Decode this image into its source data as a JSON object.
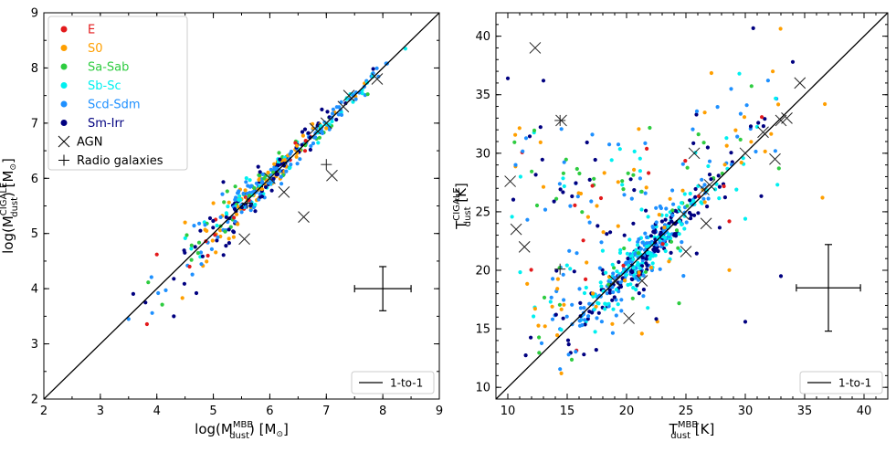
{
  "chart_data": [
    {
      "type": "scatter",
      "panel": "left",
      "xlabel_main": "log(M",
      "xlabel_sup": "MBB",
      "xlabel_sub": "dust",
      "xlabel_end": ") [M",
      "xlabel_close": "]",
      "ylabel_main": "log(M",
      "ylabel_sup": "CIGALE",
      "ylabel_sub": "dust",
      "ylabel_end": ") [M",
      "ylabel_close": "]",
      "xlim": [
        2,
        9
      ],
      "ylim": [
        2,
        9
      ],
      "xticks": [
        "2",
        "3",
        "4",
        "5",
        "6",
        "7",
        "8",
        "9"
      ],
      "yticks": [
        "2",
        "3",
        "4",
        "5",
        "6",
        "7",
        "8",
        "9"
      ],
      "one_to_one_label": "1-to-1",
      "error_bar": {
        "x": 8.0,
        "y": 4.0,
        "xerr": 0.5,
        "yerr": 0.4
      },
      "legend": [
        {
          "label": "E",
          "color": "#e31a1c",
          "marker": "dot"
        },
        {
          "label": "S0",
          "color": "#ff9f00",
          "marker": "dot"
        },
        {
          "label": "Sa-Sab",
          "color": "#2ecc40",
          "marker": "dot"
        },
        {
          "label": "Sb-Sc",
          "color": "#00f0f0",
          "marker": "dot"
        },
        {
          "label": "Scd-Sdm",
          "color": "#1e90ff",
          "marker": "dot"
        },
        {
          "label": "Sm-Irr",
          "color": "#000080",
          "marker": "dot"
        },
        {
          "label": "AGN",
          "color": "#000000",
          "marker": "x"
        },
        {
          "label": "Radio galaxies",
          "color": "#000000",
          "marker": "plus"
        }
      ],
      "agn_points": [
        [
          5.55,
          4.9
        ],
        [
          6.6,
          5.3
        ],
        [
          6.25,
          5.75
        ],
        [
          7.1,
          6.05
        ],
        [
          6.8,
          6.9
        ],
        [
          7.0,
          7.0
        ],
        [
          7.3,
          7.3
        ],
        [
          7.4,
          7.5
        ],
        [
          7.9,
          7.8
        ],
        [
          6.0,
          6.0
        ]
      ],
      "radio_points": [
        [
          7.0,
          6.25
        ],
        [
          5.6,
          5.55
        ]
      ]
    },
    {
      "type": "scatter",
      "panel": "right",
      "xlabel_main": "T",
      "xlabel_sup": "MBB",
      "xlabel_sub": "dust",
      "xlabel_end": " [K]",
      "ylabel_main": "T",
      "ylabel_sup": "CIGALE",
      "ylabel_sub": "dust",
      "ylabel_end": " [K]",
      "xlim": [
        9,
        42
      ],
      "ylim": [
        9,
        42
      ],
      "xticks": [
        "10",
        "15",
        "20",
        "25",
        "30",
        "35",
        "40"
      ],
      "yticks": [
        "10",
        "15",
        "20",
        "25",
        "30",
        "35",
        "40"
      ],
      "one_to_one_label": "1-to-1",
      "error_bar": {
        "x": 37.0,
        "y": 18.5,
        "xerr": 2.7,
        "yerr": 3.7
      },
      "agn_points": [
        [
          12.3,
          39.0
        ],
        [
          10.2,
          27.6
        ],
        [
          10.7,
          23.5
        ],
        [
          11.4,
          22.0
        ],
        [
          20.2,
          15.9
        ],
        [
          21.3,
          19.1
        ],
        [
          25.0,
          21.6
        ],
        [
          26.7,
          24.0
        ],
        [
          25.7,
          30.0
        ],
        [
          30.0,
          30.0
        ],
        [
          31.5,
          31.8
        ],
        [
          33.0,
          32.8
        ],
        [
          33.5,
          33.0
        ],
        [
          34.6,
          36.0
        ],
        [
          32.5,
          29.5
        ],
        [
          26.5,
          26.9
        ],
        [
          24.8,
          24.8
        ],
        [
          27.0,
          27.3
        ],
        [
          19.0,
          19.1
        ],
        [
          14.5,
          32.8
        ]
      ],
      "radio_points": [
        [
          14.4,
          32.8
        ],
        [
          14.4,
          20.1
        ]
      ]
    }
  ]
}
